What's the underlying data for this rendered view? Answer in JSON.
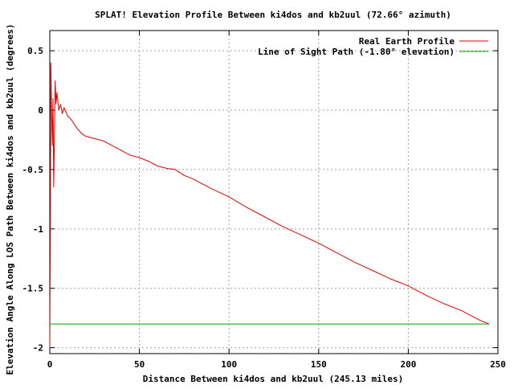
{
  "chart_data": {
    "type": "line",
    "title": "SPLAT! Elevation Profile Between ki4dos and kb2uul (72.66° azimuth)",
    "xlabel": "Distance Between ki4dos and kb2uul (245.13 miles)",
    "ylabel": "Elevation Angle Along LOS Path Between ki4dos and kb2uul (degrees)",
    "xlim": [
      0,
      250
    ],
    "ylim": [
      -2.05,
      0.67
    ],
    "x_ticks": [
      0,
      50,
      100,
      150,
      200,
      250
    ],
    "y_ticks": [
      -2,
      -1.5,
      -1,
      -0.5,
      0,
      0.5
    ],
    "x_tick_labels": [
      "0",
      "50",
      "100",
      "150",
      "200",
      "250"
    ],
    "y_tick_labels": [
      "-2",
      "-1.5",
      "-1",
      "-0.5",
      "0",
      "0.5"
    ],
    "grid": true,
    "legend_position": "top-right",
    "series": [
      {
        "name": "Real Earth Profile",
        "color": "#e00000",
        "x": [
          0,
          0.3,
          0.6,
          1.0,
          1.4,
          1.8,
          2.2,
          2.6,
          3.0,
          3.5,
          4.0,
          5,
          6,
          7,
          8,
          10,
          12,
          15,
          18,
          20,
          25,
          30,
          35,
          40,
          45,
          50,
          55,
          60,
          65,
          70,
          75,
          80,
          90,
          100,
          110,
          120,
          130,
          140,
          150,
          160,
          170,
          180,
          190,
          200,
          210,
          220,
          230,
          240,
          245.13
        ],
        "y": [
          -2.0,
          -0.95,
          0.4,
          0.0,
          -0.3,
          0.1,
          -0.65,
          -0.2,
          0.25,
          0.05,
          0.15,
          0.0,
          0.05,
          -0.03,
          0.02,
          -0.05,
          -0.08,
          -0.15,
          -0.2,
          -0.22,
          -0.24,
          -0.26,
          -0.3,
          -0.34,
          -0.38,
          -0.4,
          -0.43,
          -0.47,
          -0.49,
          -0.5,
          -0.55,
          -0.58,
          -0.66,
          -0.73,
          -0.82,
          -0.9,
          -0.98,
          -1.05,
          -1.12,
          -1.2,
          -1.28,
          -1.35,
          -1.42,
          -1.48,
          -1.56,
          -1.63,
          -1.69,
          -1.77,
          -1.8
        ]
      },
      {
        "name": "Line of Sight Path (-1.80° elevation)",
        "color": "#00a000",
        "x": [
          0,
          245.13
        ],
        "y": [
          -1.8,
          -1.8
        ]
      }
    ]
  }
}
